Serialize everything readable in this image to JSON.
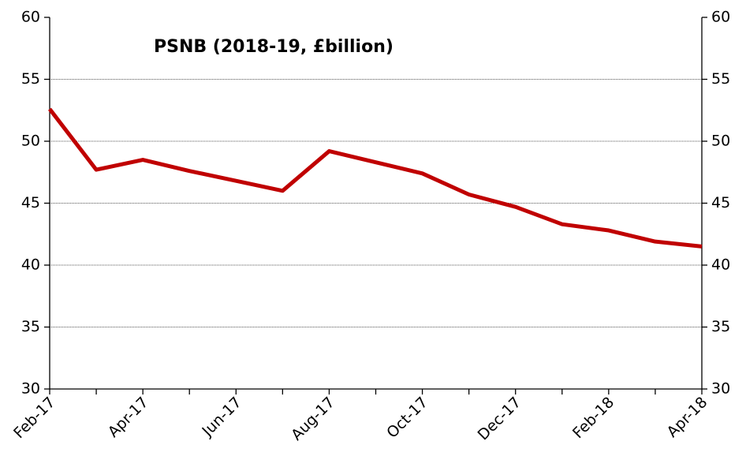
{
  "chart_data": {
    "type": "line",
    "title": "PSNB (2018-19, £billion)",
    "categories": [
      "Feb-17",
      null,
      "Apr-17",
      null,
      "Jun-17",
      null,
      "Aug-17",
      null,
      "Oct-17",
      null,
      "Dec-17",
      null,
      "Feb-18",
      null,
      "Apr-18"
    ],
    "series": [
      {
        "name": "PSNB",
        "color": "#c00000",
        "values": [
          52.6,
          47.7,
          48.5,
          47.6,
          46.8,
          46.0,
          49.2,
          48.3,
          47.4,
          45.7,
          44.7,
          43.3,
          42.8,
          41.9,
          41.5
        ]
      }
    ],
    "ylim": [
      30,
      60
    ],
    "yticks": [
      30,
      35,
      40,
      45,
      50,
      55,
      60
    ],
    "y2lim": [
      30,
      60
    ],
    "y2ticks": [
      30,
      35,
      40,
      45,
      50,
      55,
      60
    ],
    "grid": true
  }
}
